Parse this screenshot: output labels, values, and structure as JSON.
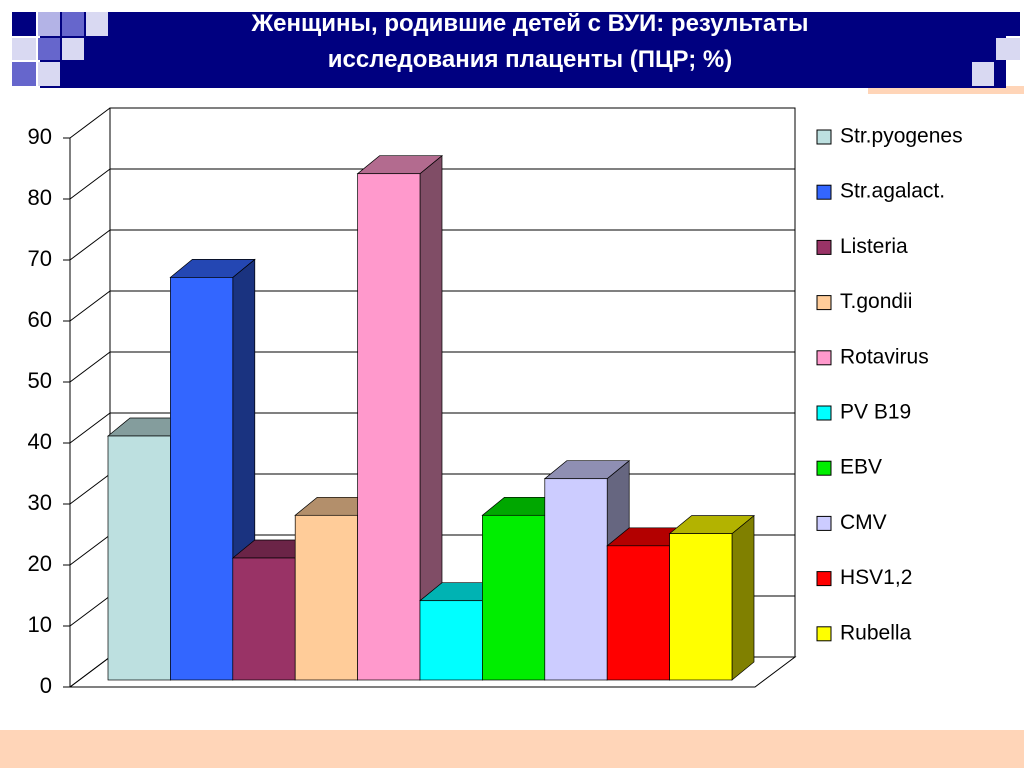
{
  "chart_data": {
    "type": "bar3d",
    "title": "Женщины, родившие детей с ВУИ: результаты исследования плаценты (ПЦР; %)",
    "ylim": [
      0,
      90
    ],
    "yticks": [
      0,
      10,
      20,
      30,
      40,
      50,
      60,
      70,
      80,
      90
    ],
    "grid": true,
    "legend": "right",
    "series": [
      {
        "name": "Str.pyogenes",
        "color": "#bde0e0",
        "values": [
          40
        ]
      },
      {
        "name": "Str.agalact.",
        "color": "#3366ff",
        "values": [
          66
        ]
      },
      {
        "name": "Listeria",
        "color": "#993366",
        "values": [
          20
        ]
      },
      {
        "name": "T.gondii",
        "color": "#ffcc99",
        "values": [
          27
        ]
      },
      {
        "name": "Rotavirus",
        "color": "#ff99cc",
        "values": [
          83
        ]
      },
      {
        "name": "PV B19",
        "color": "#00ffff",
        "values": [
          13
        ]
      },
      {
        "name": "EBV",
        "color": "#00ee00",
        "values": [
          27
        ]
      },
      {
        "name": "CMV",
        "color": "#ccccff",
        "values": [
          33
        ]
      },
      {
        "name": "HSV1,2",
        "color": "#ff0000",
        "values": [
          22
        ]
      },
      {
        "name": "Rubella",
        "color": "#ffff00",
        "values": [
          24
        ]
      }
    ]
  }
}
